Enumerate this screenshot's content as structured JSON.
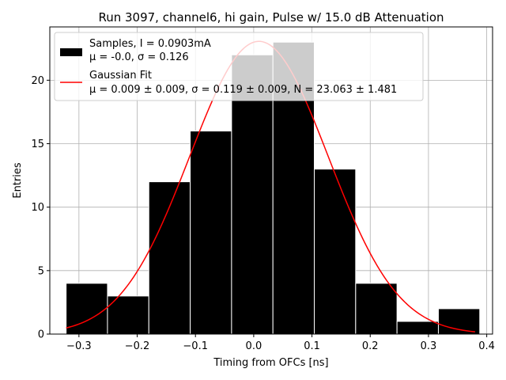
{
  "chart_data": {
    "type": "bar",
    "title": "Run 3097, channel6, hi gain, Pulse w/ 15.0 dB Attenuation",
    "xlabel": "Timing from OFCs [ns]",
    "ylabel": "Entries",
    "xlim": [
      -0.35,
      0.41
    ],
    "ylim": [
      0,
      24.2
    ],
    "grid": true,
    "x_ticks": [
      -0.3,
      -0.2,
      -0.1,
      0.0,
      0.1,
      0.2,
      0.3,
      0.4
    ],
    "x_tick_labels": [
      "−0.3",
      "−0.2",
      "−0.1",
      "0.0",
      "0.1",
      "0.2",
      "0.3",
      "0.4"
    ],
    "y_ticks": [
      0,
      5,
      10,
      15,
      20
    ],
    "y_tick_labels": [
      "0",
      "5",
      "10",
      "15",
      "20"
    ],
    "histogram": {
      "name": "Samples",
      "bin_edges": [
        -0.322,
        -0.251,
        -0.18,
        -0.109,
        -0.038,
        0.033,
        0.104,
        0.175,
        0.246,
        0.317,
        0.388
      ],
      "counts": [
        4,
        3,
        12,
        16,
        22,
        23,
        13,
        4,
        1,
        2
      ],
      "color": "#000000",
      "edge_color": "#ffffff"
    },
    "fit": {
      "name": "Gaussian Fit",
      "mu": 0.009,
      "sigma": 0.119,
      "N": 23.063,
      "x_range": [
        -0.322,
        0.38
      ],
      "color": "#ff0000"
    },
    "legend": {
      "position": "top-left",
      "entries": [
        {
          "kind": "patch",
          "line1": "Samples, I = 0.0903mA",
          "line2": "μ = -0.0, σ = 0.126"
        },
        {
          "kind": "line",
          "line1": "Gaussian Fit",
          "line2": "μ = 0.009 ± 0.009, σ = 0.119 ± 0.009, N = 23.063 ± 1.481"
        }
      ]
    }
  }
}
